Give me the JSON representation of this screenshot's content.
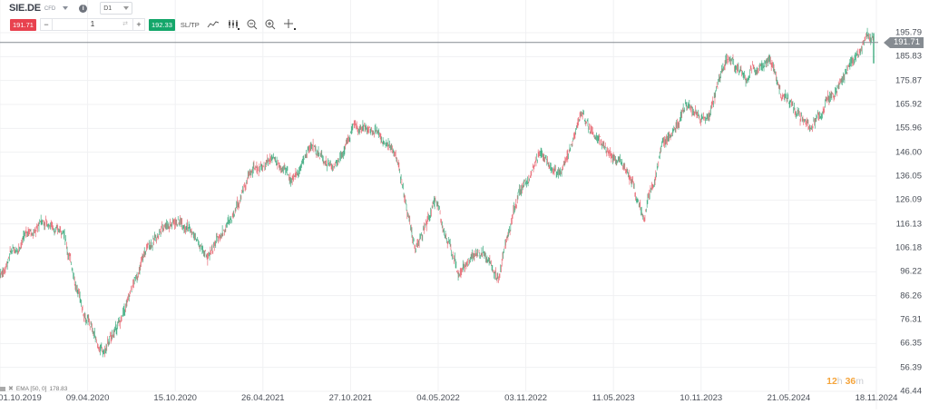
{
  "toolbar": {
    "symbol": "SIE.DE",
    "instrument_type": "CFD",
    "timeframe": "D1",
    "sell_price": "191.71",
    "quantity": "1",
    "buy_price": "192.33",
    "sltp_label": "SL/TP",
    "icons": [
      "line-chart-icon",
      "candlestick-icon",
      "zoom-out-icon",
      "zoom-in-icon",
      "crosshair-icon"
    ]
  },
  "colors": {
    "sell": "#e8424f",
    "buy": "#14a66a",
    "candle_up": "#1f9e6b",
    "candle_down": "#e5505c",
    "price_line": "#868c92",
    "grid": "#f0f1f3",
    "countdown": "#f5a43b"
  },
  "indicator": {
    "label": "EMA [50, 0]",
    "value": "178.83"
  },
  "countdown": {
    "hours": "12",
    "h": "h",
    "minutes": "36",
    "m": "m"
  },
  "current_price": "191.71",
  "chart_data": {
    "type": "candlestick",
    "title": "SIE.DE CFD D1",
    "xlabel": "",
    "ylabel": "",
    "y_ticks": [
      "195.79",
      "185.83",
      "175.87",
      "165.92",
      "155.96",
      "146.00",
      "136.05",
      "126.09",
      "116.13",
      "106.18",
      "96.22",
      "86.26",
      "76.31",
      "66.35",
      "56.39",
      "46.44"
    ],
    "x_ticks": [
      "01.10.2019",
      "09.04.2020",
      "15.10.2020",
      "26.04.2021",
      "27.10.2021",
      "04.05.2022",
      "03.11.2022",
      "11.05.2023",
      "10.11.2023",
      "21.05.2024",
      "18.11.2024"
    ],
    "ylim": [
      46.44,
      195.79
    ],
    "grid": true,
    "current_price": 191.71,
    "path_keypoints": [
      {
        "date": "01.10.2019",
        "price": 95
      },
      {
        "date": "11.2019",
        "price": 110
      },
      {
        "date": "01.2020",
        "price": 117
      },
      {
        "date": "02.2020",
        "price": 114
      },
      {
        "date": "03.2020",
        "price": 80
      },
      {
        "date": "end 03.2020",
        "price": 62
      },
      {
        "date": "04.2020",
        "price": 78
      },
      {
        "date": "06.2020",
        "price": 104
      },
      {
        "date": "07.2020",
        "price": 117
      },
      {
        "date": "09.2020",
        "price": 118
      },
      {
        "date": "10.2020",
        "price": 100
      },
      {
        "date": "11.2020",
        "price": 118
      },
      {
        "date": "01.2021",
        "price": 137
      },
      {
        "date": "04.2021",
        "price": 143
      },
      {
        "date": "06.2021",
        "price": 134
      },
      {
        "date": "08.2021",
        "price": 150
      },
      {
        "date": "09.2021",
        "price": 140
      },
      {
        "date": "11.2021",
        "price": 157
      },
      {
        "date": "01.2022",
        "price": 156
      },
      {
        "date": "02.2022",
        "price": 145
      },
      {
        "date": "03.2022",
        "price": 106
      },
      {
        "date": "04.2022",
        "price": 125
      },
      {
        "date": "06.2022",
        "price": 95
      },
      {
        "date": "08.2022",
        "price": 104
      },
      {
        "date": "09.2022",
        "price": 96
      },
      {
        "date": "11.2022",
        "price": 130
      },
      {
        "date": "01.2023",
        "price": 145
      },
      {
        "date": "03.2023",
        "price": 138
      },
      {
        "date": "05.2023",
        "price": 162
      },
      {
        "date": "07.2023",
        "price": 148
      },
      {
        "date": "08.2023",
        "price": 140
      },
      {
        "date": "10.2023",
        "price": 122
      },
      {
        "date": "11.2023",
        "price": 150
      },
      {
        "date": "01.2024",
        "price": 168
      },
      {
        "date": "02.2024",
        "price": 160
      },
      {
        "date": "03.2024",
        "price": 184
      },
      {
        "date": "05.2024",
        "price": 178
      },
      {
        "date": "06.2024",
        "price": 186
      },
      {
        "date": "07.2024",
        "price": 165
      },
      {
        "date": "08.2024",
        "price": 155
      },
      {
        "date": "09.2024",
        "price": 168
      },
      {
        "date": "10.2024",
        "price": 183
      },
      {
        "date": "11.2024",
        "price": 191.71
      }
    ]
  }
}
